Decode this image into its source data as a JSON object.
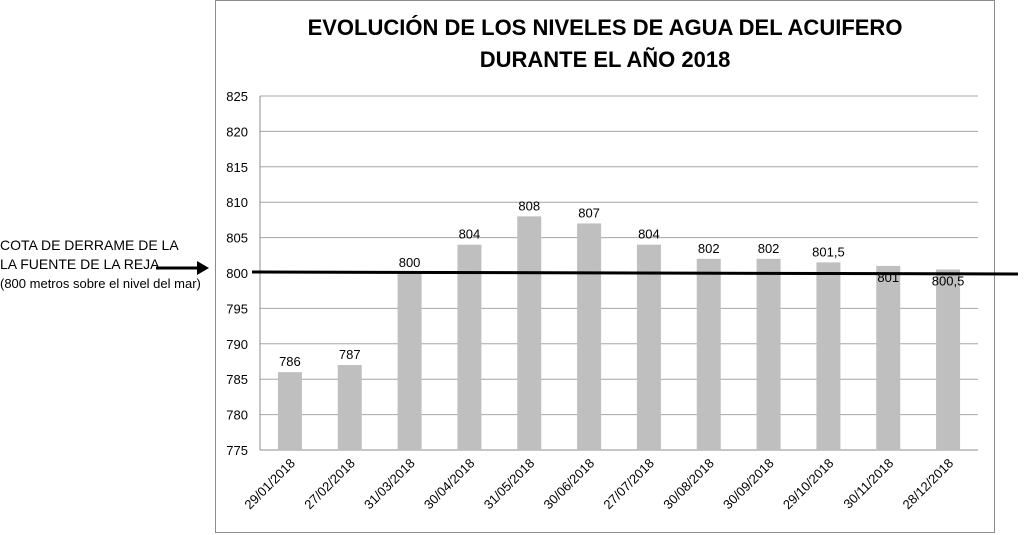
{
  "chart_data": {
    "type": "bar",
    "title": [
      "EVOLUCIÓN DE LOS NIVELES DE AGUA DEL ACUIFERO",
      "DURANTE EL AÑO 2018"
    ],
    "categories": [
      "29/01/2018",
      "27/02/2018",
      "31/03/2018",
      "30/04/2018",
      "31/05/2018",
      "30/06/2018",
      "27/07/2018",
      "30/08/2018",
      "30/09/2018",
      "29/10/2018",
      "30/11/2018",
      "28/12/2018"
    ],
    "values": [
      786,
      787,
      800,
      804,
      808,
      807,
      804,
      802,
      802,
      801.5,
      801,
      800.5
    ],
    "data_labels": [
      "786",
      "787",
      "800",
      "804",
      "808",
      "807",
      "804",
      "802",
      "802",
      "801,5",
      "801",
      "800,5"
    ],
    "ylim": [
      775,
      825
    ],
    "yticks": [
      775,
      780,
      785,
      790,
      795,
      800,
      805,
      810,
      815,
      820,
      825
    ],
    "grid": true,
    "bar_color": "#bfbfbf",
    "reference_line": {
      "value": 800,
      "color": "#000000"
    }
  },
  "annotation": {
    "line1": "COTA DE DERRAME DE LA",
    "line2": "LA FUENTE DE LA REJA",
    "line3": "(800 metros sobre el nivel del mar)"
  }
}
